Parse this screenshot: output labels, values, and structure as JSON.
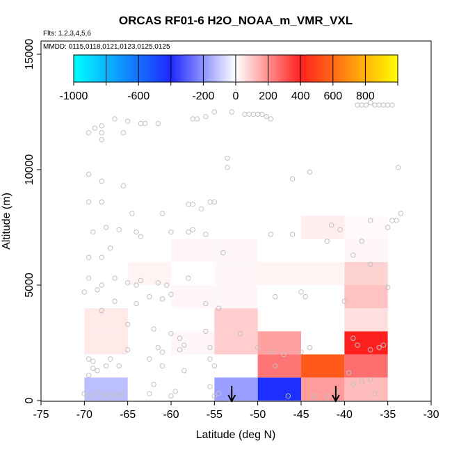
{
  "chart_data": {
    "type": "heatmap",
    "title": "ORCAS RF01-6 H2O_NOAA_m_VMR_VXL",
    "subtitle_flights": "Flts: 1,2,3,4,5,6",
    "subtitle_dates": "MMDD: 0115,0118,0121,0123,0125,0125",
    "xlabel": "Latitude (deg N)",
    "ylabel": "Altitude (m)",
    "xlim": [
      -75,
      -30
    ],
    "ylim": [
      0,
      16000
    ],
    "xticks": [
      -75,
      -70,
      -65,
      -60,
      -55,
      -50,
      -45,
      -40,
      -35,
      -30
    ],
    "yticks": [
      0,
      5000,
      10000,
      15000
    ],
    "grid": false,
    "colorbar": {
      "range": [
        -1000,
        1000
      ],
      "ticks": [
        -1000,
        -600,
        -200,
        0,
        200,
        400,
        600,
        800
      ],
      "colors": {
        "cyan": "#00ffff",
        "blue": "#1e28ff",
        "white": "#ffffff",
        "red": "#ff2020",
        "yellow": "#ffff00"
      }
    },
    "cells": [
      {
        "lat": [
          -70,
          -65
        ],
        "alt": [
          0,
          1000
        ],
        "value": -120
      },
      {
        "lat": [
          -70,
          -65
        ],
        "alt": [
          2000,
          3000
        ],
        "value": 40
      },
      {
        "lat": [
          -70,
          -65
        ],
        "alt": [
          3000,
          4000
        ],
        "value": 40
      },
      {
        "lat": [
          -65,
          -60
        ],
        "alt": [
          5000,
          6000
        ],
        "value": 20
      },
      {
        "lat": [
          -60,
          -55
        ],
        "alt": [
          2000,
          3000
        ],
        "value": 15
      },
      {
        "lat": [
          -60,
          -55
        ],
        "alt": [
          4000,
          5000
        ],
        "value": 15
      },
      {
        "lat": [
          -60,
          -55
        ],
        "alt": [
          6000,
          7000
        ],
        "value": 15
      },
      {
        "lat": [
          -55,
          -50
        ],
        "alt": [
          0,
          1000
        ],
        "value": -180
      },
      {
        "lat": [
          -55,
          -50
        ],
        "alt": [
          2000,
          3000
        ],
        "value": 90
      },
      {
        "lat": [
          -55,
          -50
        ],
        "alt": [
          3000,
          4000
        ],
        "value": 90
      },
      {
        "lat": [
          -55,
          -50
        ],
        "alt": [
          4000,
          5000
        ],
        "value": 15
      },
      {
        "lat": [
          -55,
          -50
        ],
        "alt": [
          5000,
          6000
        ],
        "value": 15
      },
      {
        "lat": [
          -55,
          -50
        ],
        "alt": [
          6000,
          7000
        ],
        "value": 15
      },
      {
        "lat": [
          -50,
          -45
        ],
        "alt": [
          0,
          1000
        ],
        "value": -420
      },
      {
        "lat": [
          -50,
          -45
        ],
        "alt": [
          1000,
          2000
        ],
        "value": 250
      },
      {
        "lat": [
          -50,
          -45
        ],
        "alt": [
          2000,
          3000
        ],
        "value": 170
      },
      {
        "lat": [
          -50,
          -45
        ],
        "alt": [
          5000,
          6000
        ],
        "value": 20
      },
      {
        "lat": [
          -45,
          -40
        ],
        "alt": [
          0,
          1000
        ],
        "value": 180
      },
      {
        "lat": [
          -45,
          -40
        ],
        "alt": [
          1000,
          2000
        ],
        "value": 550
      },
      {
        "lat": [
          -45,
          -40
        ],
        "alt": [
          5000,
          6000
        ],
        "value": 20
      },
      {
        "lat": [
          -45,
          -40
        ],
        "alt": [
          7000,
          8000
        ],
        "value": 30
      },
      {
        "lat": [
          -40,
          -35
        ],
        "alt": [
          0,
          1000
        ],
        "value": 120
      },
      {
        "lat": [
          -40,
          -35
        ],
        "alt": [
          1000,
          2000
        ],
        "value": 260
      },
      {
        "lat": [
          -40,
          -35
        ],
        "alt": [
          2000,
          3000
        ],
        "value": 400
      },
      {
        "lat": [
          -40,
          -35
        ],
        "alt": [
          3000,
          4000
        ],
        "value": 60
      },
      {
        "lat": [
          -40,
          -35
        ],
        "alt": [
          4000,
          5000
        ],
        "value": 110
      },
      {
        "lat": [
          -40,
          -35
        ],
        "alt": [
          5000,
          6000
        ],
        "value": 80
      },
      {
        "lat": [
          -40,
          -35
        ],
        "alt": [
          6000,
          7000
        ],
        "value": 15
      },
      {
        "lat": [
          -40,
          -35
        ],
        "alt": [
          7000,
          8000
        ],
        "value": 10
      }
    ],
    "arrows": [
      {
        "lat": -53,
        "direction": "down"
      },
      {
        "lat": -41,
        "direction": "down"
      }
    ],
    "points": [
      [
        -69.5,
        11600
      ],
      [
        -68.8,
        11800
      ],
      [
        -68.0,
        11900
      ],
      [
        -68.0,
        11600
      ],
      [
        -68.0,
        11300
      ],
      [
        -66.5,
        12200
      ],
      [
        -65.0,
        12100
      ],
      [
        -65.5,
        11600
      ],
      [
        -63.5,
        12000
      ],
      [
        -61.5,
        12000
      ],
      [
        -63.0,
        12000
      ],
      [
        -57.0,
        12200
      ],
      [
        -57.5,
        12200
      ],
      [
        -56.0,
        12300
      ],
      [
        -55.0,
        12500
      ],
      [
        -53.0,
        12500
      ],
      [
        -51.5,
        12400
      ],
      [
        -51.0,
        12400
      ],
      [
        -50.5,
        12400
      ],
      [
        -50.0,
        12400
      ],
      [
        -49.5,
        12400
      ],
      [
        -49.0,
        12300
      ],
      [
        -48.5,
        12200
      ],
      [
        -38.5,
        12800
      ],
      [
        -38.0,
        12800
      ],
      [
        -37.5,
        12800
      ],
      [
        -37.0,
        12900
      ],
      [
        -36.5,
        12800
      ],
      [
        -36.0,
        12800
      ],
      [
        -35.5,
        12800
      ],
      [
        -35.0,
        12800
      ],
      [
        -34.5,
        12800
      ],
      [
        -53.5,
        10500
      ],
      [
        -53.5,
        10100
      ],
      [
        -44.0,
        9900
      ],
      [
        -46.0,
        9600
      ],
      [
        -33.8,
        10100
      ],
      [
        -69.5,
        9800
      ],
      [
        -68.0,
        9500
      ],
      [
        -65.5,
        9300
      ],
      [
        -69.5,
        8600
      ],
      [
        -68.0,
        8600
      ],
      [
        -58.0,
        8500
      ],
      [
        -57.5,
        8500
      ],
      [
        -56.5,
        8300
      ],
      [
        -55.0,
        8600
      ],
      [
        -55.5,
        8600
      ],
      [
        -64.5,
        8100
      ],
      [
        -61.0,
        8100
      ],
      [
        -69.0,
        7300
      ],
      [
        -67.5,
        7500
      ],
      [
        -66.0,
        7400
      ],
      [
        -64.0,
        7300
      ],
      [
        -63.5,
        7100
      ],
      [
        -60.0,
        7300
      ],
      [
        -58.0,
        7300
      ],
      [
        -57.5,
        7400
      ],
      [
        -56.0,
        7200
      ],
      [
        -48.5,
        7200
      ],
      [
        -46.0,
        7200
      ],
      [
        -41.5,
        7600
      ],
      [
        -40.5,
        7400
      ],
      [
        -37.0,
        7800
      ],
      [
        -35.0,
        7500
      ],
      [
        -34.5,
        7800
      ],
      [
        -34.0,
        7800
      ],
      [
        -33.5,
        8100
      ],
      [
        -69.5,
        6200
      ],
      [
        -68.0,
        6200
      ],
      [
        -67.0,
        6600
      ],
      [
        -54.0,
        6400
      ],
      [
        -42.0,
        6900
      ],
      [
        -38.0,
        6900
      ],
      [
        -39.0,
        6300
      ],
      [
        -37.0,
        5900
      ],
      [
        -69.5,
        5300
      ],
      [
        -68.0,
        5000
      ],
      [
        -66.5,
        5300
      ],
      [
        -65.0,
        5100
      ],
      [
        -64.0,
        5000
      ],
      [
        -63.5,
        5200
      ],
      [
        -61.5,
        5100
      ],
      [
        -60.5,
        5000
      ],
      [
        -58.0,
        5300
      ],
      [
        -70.0,
        4700
      ],
      [
        -68.5,
        4800
      ],
      [
        -66.5,
        4300
      ],
      [
        -64.0,
        4200
      ],
      [
        -62.5,
        4500
      ],
      [
        -61.0,
        4400
      ],
      [
        -60.0,
        4600
      ],
      [
        -56.0,
        4200
      ],
      [
        -54.5,
        4000
      ],
      [
        -48.0,
        4500
      ],
      [
        -45.0,
        4700
      ],
      [
        -44.5,
        4500
      ],
      [
        -40.0,
        4300
      ],
      [
        -35.0,
        4900
      ],
      [
        -68.0,
        3900
      ],
      [
        -65.0,
        3300
      ],
      [
        -62.0,
        3100
      ],
      [
        -60.0,
        2900
      ],
      [
        -59.0,
        2700
      ],
      [
        -56.0,
        3000
      ],
      [
        -58.5,
        2400
      ],
      [
        -55.5,
        2300
      ],
      [
        -61.5,
        2300
      ],
      [
        -61.0,
        2100
      ],
      [
        -59.0,
        2200
      ],
      [
        -52.0,
        2900
      ],
      [
        -50.0,
        2300
      ],
      [
        -48.5,
        2100
      ],
      [
        -47.0,
        2000
      ],
      [
        -45.0,
        2100
      ],
      [
        -44.0,
        2300
      ],
      [
        -39.0,
        2700
      ],
      [
        -38.5,
        2400
      ],
      [
        -37.0,
        2200
      ],
      [
        -36.0,
        2300
      ],
      [
        -35.5,
        2400
      ],
      [
        -69.5,
        1800
      ],
      [
        -69.0,
        1700
      ],
      [
        -69.0,
        1400
      ],
      [
        -67.0,
        1800
      ],
      [
        -67.5,
        1500
      ],
      [
        -65.0,
        2200
      ],
      [
        -66.0,
        1500
      ],
      [
        -69.5,
        1100
      ],
      [
        -68.5,
        1300
      ],
      [
        -62.5,
        1800
      ],
      [
        -61.0,
        1500
      ],
      [
        -58.5,
        1300
      ],
      [
        -55.5,
        1800
      ],
      [
        -55.0,
        1500
      ],
      [
        -48.0,
        1500
      ],
      [
        -70.0,
        300
      ],
      [
        -69.5,
        200
      ],
      [
        -69.0,
        250
      ],
      [
        -68.5,
        400
      ],
      [
        -68.0,
        200
      ],
      [
        -67.5,
        300
      ],
      [
        -67.0,
        200
      ],
      [
        -66.5,
        300
      ],
      [
        -66.0,
        200
      ],
      [
        -65.5,
        300
      ],
      [
        -62.5,
        300
      ],
      [
        -62.0,
        700
      ],
      [
        -60.0,
        200
      ],
      [
        -59.5,
        400
      ],
      [
        -55.0,
        200
      ],
      [
        -54.5,
        300
      ],
      [
        -55.5,
        600
      ],
      [
        -46.5,
        200
      ],
      [
        -39.0,
        700
      ],
      [
        -39.5,
        1200
      ],
      [
        -38.0,
        800
      ],
      [
        -36.5,
        300
      ],
      [
        -37.0,
        900
      ],
      [
        -41.0,
        400
      ],
      [
        -43.5,
        200
      ],
      [
        -42.0,
        200
      ]
    ]
  }
}
